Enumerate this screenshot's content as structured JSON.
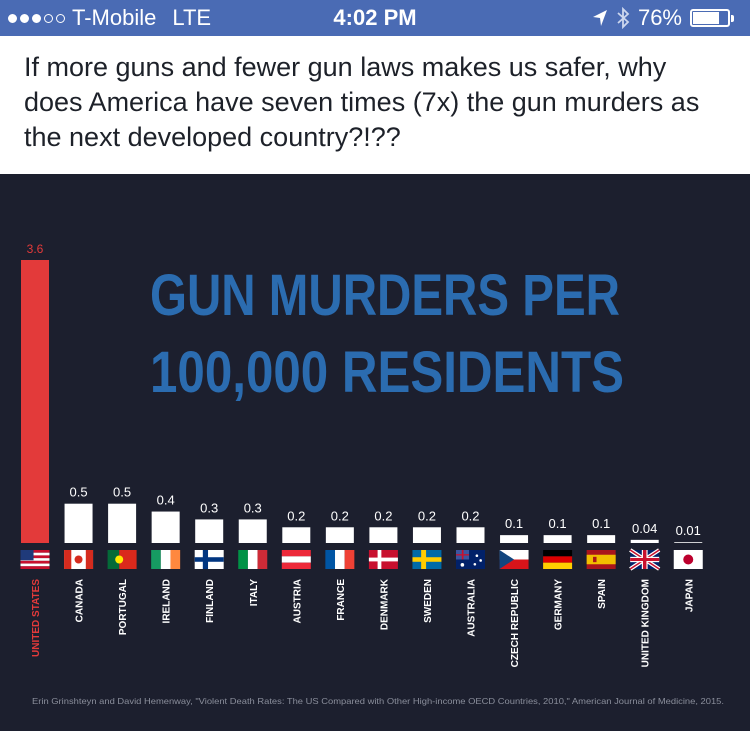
{
  "status_bar": {
    "carrier": "T-Mobile",
    "network": "LTE",
    "time": "4:02 PM",
    "battery": "76%",
    "battery_level": 0.76,
    "signal_bars_filled": 3,
    "signal_bars_total": 5,
    "location_icon": "location-arrow-icon",
    "bluetooth_icon": "bluetooth-icon"
  },
  "post": {
    "text": "If more guns and fewer gun laws makes us safer, why does America have seven times (7x) the gun murders as the next developed country?!??"
  },
  "infographic": {
    "title_line1": "GUN MURDERS PER",
    "title_line2": "100,000 RESIDENTS",
    "source": "Erin Grinshteyn and David Hemenway, \"Violent Death Rates: The US Compared with Other High-income OECD Countries, 2010,\" American Journal of Medicine, 2015.",
    "colors": {
      "background": "#1c1f2e",
      "us_bar": "#e33a3a",
      "other_bar": "#ffffff",
      "title": "#2b6cb0",
      "us_label": "#e33a3a",
      "label": "#ffffff"
    }
  },
  "chart_data": {
    "type": "bar",
    "title": "GUN MURDERS PER 100,000 RESIDENTS",
    "categories": [
      "UNITED STATES",
      "CANADA",
      "PORTUGAL",
      "IRELAND",
      "FINLAND",
      "ITALY",
      "AUSTRIA",
      "FRANCE",
      "DENMARK",
      "SWEDEN",
      "AUSTRALIA",
      "CZECH REPUBLIC",
      "GERMANY",
      "SPAIN",
      "UNITED KINGDOM",
      "JAPAN"
    ],
    "values": [
      3.6,
      0.5,
      0.5,
      0.4,
      0.3,
      0.3,
      0.2,
      0.2,
      0.2,
      0.2,
      0.2,
      0.1,
      0.1,
      0.1,
      0.04,
      0.01
    ],
    "value_labels": [
      "3.6",
      "0.5",
      "0.5",
      "0.4",
      "0.3",
      "0.3",
      "0.2",
      "0.2",
      "0.2",
      "0.2",
      "0.2",
      "0.1",
      "0.1",
      "0.1",
      "0.04",
      "0.01"
    ],
    "flags": [
      "us-flag-icon",
      "canada-flag-icon",
      "portugal-flag-icon",
      "ireland-flag-icon",
      "finland-flag-icon",
      "italy-flag-icon",
      "austria-flag-icon",
      "france-flag-icon",
      "denmark-flag-icon",
      "sweden-flag-icon",
      "australia-flag-icon",
      "czech-flag-icon",
      "germany-flag-icon",
      "spain-flag-icon",
      "uk-flag-icon",
      "japan-flag-icon"
    ],
    "xlabel": "",
    "ylabel": "",
    "ylim": [
      0,
      3.6
    ],
    "grid": false,
    "legend": "none"
  }
}
